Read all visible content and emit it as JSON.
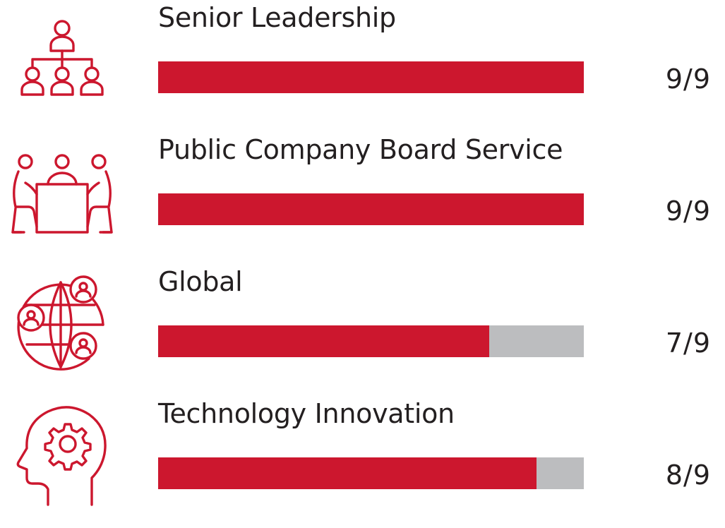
{
  "chart_data": {
    "type": "bar",
    "orientation": "horizontal",
    "categories": [
      "Senior Leadership",
      "Public Company Board Service",
      "Global",
      "Technology Innovation"
    ],
    "values": [
      9,
      9,
      7,
      8
    ],
    "max": 9,
    "value_labels": [
      "9/9",
      "9/9",
      "7/9",
      "8/9"
    ],
    "icons": [
      "org-chart-icon",
      "board-meeting-icon",
      "globe-people-icon",
      "head-gear-icon"
    ],
    "colors": {
      "fill": "#cc172e",
      "track": "#bcbdbf",
      "text": "#231f20"
    }
  }
}
